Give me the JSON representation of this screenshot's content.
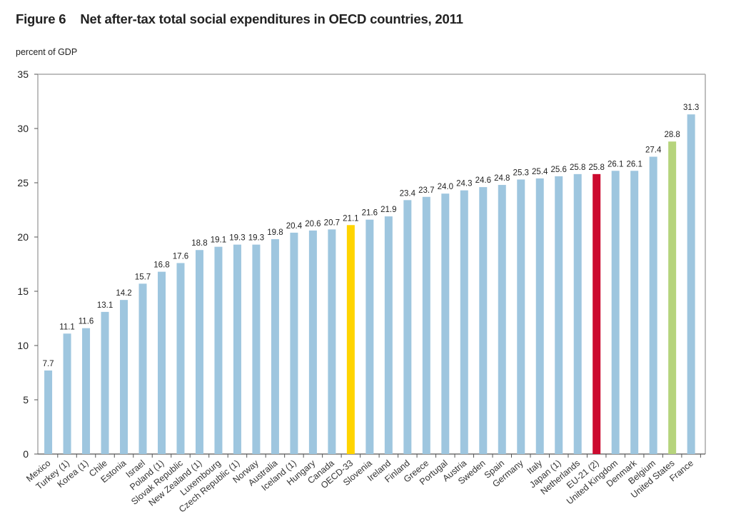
{
  "figure": {
    "number": "Figure 6",
    "title": "Net after-tax total social expenditures in OECD countries, 2011",
    "unit_label": "percent of GDP"
  },
  "colors": {
    "default": "#9ec6df",
    "OECD-33": "#ffd400",
    "EU-21 (2)": "#cc0a2f",
    "United States": "#b6d47c",
    "axis": "#a8a8a8"
  },
  "chart_data": {
    "type": "bar",
    "title": "Net after-tax total social expenditures in OECD countries, 2011",
    "xlabel": "",
    "ylabel": "percent of GDP",
    "ylim": [
      0,
      35
    ],
    "yticks": [
      0,
      5,
      10,
      15,
      20,
      25,
      30,
      35
    ],
    "grid": false,
    "legend": "none",
    "categories": [
      "Mexico",
      "Turkey (1)",
      "Korea (1)",
      "Chile",
      "Estonia",
      "Israel",
      "Poland (1)",
      "Slovak Republic",
      "New Zealand (1)",
      "Luxembourg",
      "Czech Republic (1)",
      "Norway",
      "Australia",
      "Iceland (1)",
      "Hungary",
      "Canada",
      "OECD-33",
      "Slovenia",
      "Ireland",
      "Finland",
      "Greece",
      "Portugal",
      "Austria",
      "Sweden",
      "Spain",
      "Germany",
      "Italy",
      "Japan (1)",
      "Netherlands",
      "EU-21 (2)",
      "United Kingdom",
      "Denmark",
      "Belgium",
      "United States",
      "France"
    ],
    "values": [
      7.7,
      11.1,
      11.6,
      13.1,
      14.2,
      15.7,
      16.8,
      17.6,
      18.8,
      19.1,
      19.3,
      19.3,
      19.8,
      20.4,
      20.6,
      20.7,
      21.1,
      21.6,
      21.9,
      23.4,
      23.7,
      24.0,
      24.3,
      24.6,
      24.8,
      25.3,
      25.4,
      25.6,
      25.8,
      25.8,
      26.1,
      26.1,
      27.4,
      28.8,
      31.3
    ],
    "value_labels": [
      "7.7",
      "11.1",
      "11.6",
      "13.1",
      "14.2",
      "15.7",
      "16.8",
      "17.6",
      "18.8",
      "19.1",
      "19.3",
      "19.3",
      "19.8",
      "20.4",
      "20.6",
      "20.7",
      "21.1",
      "21.6",
      "21.9",
      "23.4",
      "23.7",
      "24.0",
      "24.3",
      "24.6",
      "24.8",
      "25.3",
      "25.4",
      "25.6",
      "25.8",
      "25.8",
      "26.1",
      "26.1",
      "27.4",
      "28.8",
      "31.3"
    ],
    "highlighted": {
      "OECD-33": "yellow",
      "EU-21 (2)": "red",
      "United States": "green"
    }
  }
}
